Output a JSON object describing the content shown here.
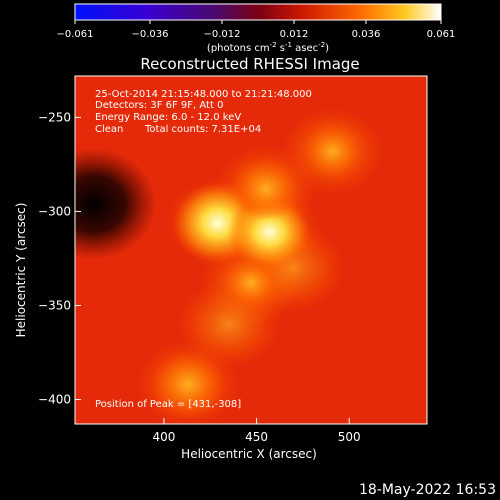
{
  "chart_data": {
    "type": "heatmap",
    "title": "Reconstructed RHESSI Image",
    "xlabel": "Heliocentric X (arcsec)",
    "ylabel": "Heliocentric Y (arcsec)",
    "xlim": [
      352,
      542
    ],
    "ylim": [
      -413,
      -228
    ],
    "x_ticks": [
      "400",
      "450",
      "500"
    ],
    "x_tick_values": [
      400,
      450,
      500
    ],
    "y_ticks": [
      "-250",
      "-300",
      "-350",
      "-400"
    ],
    "y_tick_values": [
      -250,
      -300,
      -350,
      -400
    ],
    "colorbar": {
      "range": [
        -0.061,
        0.061
      ],
      "tick_labels": [
        "-0.061",
        "-0.036",
        "-0.012",
        "0.012",
        "0.036",
        "0.061"
      ],
      "tick_values": [
        -0.061,
        -0.036,
        -0.012,
        0.012,
        0.036,
        0.061
      ],
      "units_label": "(photons cm",
      "units_sup1": "-2",
      "units_mid": " s",
      "units_sup2": "-1",
      "units_mid2": " asec",
      "units_sup3": "-2",
      "units_end": ")",
      "colormap": "std-gamma-II (blue-purple-red-orange-yellow-white)"
    },
    "annotations": {
      "time_range": "25-Oct-2014 21:15:48.000 to 21:21:48.000",
      "detectors": "Detectors: 3F 6F 9F, Att 0",
      "energy": "Energy Range: 6.0 - 12.0 keV",
      "method": "Clean",
      "counts": "Total counts: 7.31E+04",
      "peak": "Position of Peak = [431,-308]"
    },
    "peak_position": [
      431,
      -308
    ],
    "sources": [
      {
        "x": 429,
        "y": -306,
        "level": 0.061
      },
      {
        "x": 457,
        "y": -311,
        "level": 0.055
      },
      {
        "x": 413,
        "y": -392,
        "level": 0.045
      },
      {
        "x": 455,
        "y": -288,
        "level": 0.04
      },
      {
        "x": 491,
        "y": -268,
        "level": 0.032
      },
      {
        "x": 447,
        "y": -338,
        "level": 0.03
      }
    ],
    "background_level": 0.028,
    "dark_region": {
      "x": 362,
      "y": -296,
      "level": -0.01
    }
  },
  "timestamp": "18-May-2022 16:53"
}
